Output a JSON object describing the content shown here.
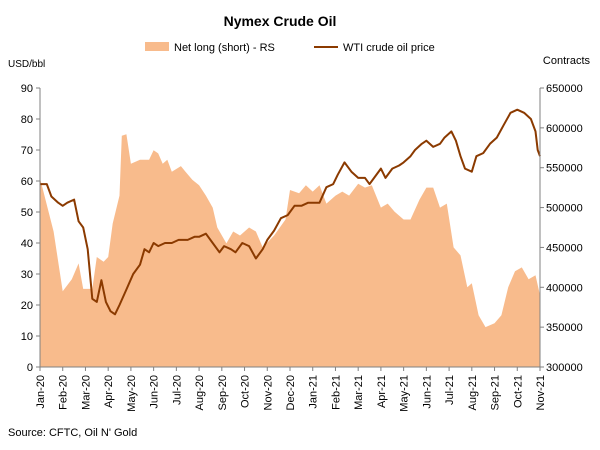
{
  "chart_data": {
    "type": "area+line",
    "title": "Nymex Crude Oil",
    "ylabel_left": "USD/bbl",
    "ylabel_right": "Contracts",
    "source": "Source: CFTC, Oil N' Gold",
    "y_left_range": [
      0,
      90
    ],
    "y_left_ticks": [
      "0",
      "10",
      "20",
      "30",
      "40",
      "50",
      "60",
      "70",
      "80",
      "90"
    ],
    "y_right_range": [
      300000,
      650000
    ],
    "y_right_ticks": [
      "300000",
      "350000",
      "400000",
      "450000",
      "500000",
      "550000",
      "600000",
      "650000"
    ],
    "x_range": [
      0,
      22
    ],
    "x_tick_labels": [
      "Jan-20",
      "Feb-20",
      "Mar-20",
      "Apr-20",
      "May-20",
      "Jun-20",
      "Jul-20",
      "Aug-20",
      "Sep-20",
      "Oct-20",
      "Nov-20",
      "Dec-20",
      "Jan-21",
      "Feb-21",
      "Mar-21",
      "Apr-21",
      "May-21",
      "Jun-21",
      "Jul-21",
      "Aug-21",
      "Sep-21",
      "Oct-21",
      "Nov-21"
    ],
    "grid": false,
    "legend_position": "top",
    "series": [
      {
        "name": "Net long (short) - RS",
        "axis": "right",
        "kind": "area",
        "color": "#f8bb8c",
        "points": [
          [
            0,
            537000
          ],
          [
            0.6,
            470000
          ],
          [
            1.0,
            395000
          ],
          [
            1.4,
            410000
          ],
          [
            1.7,
            430000
          ],
          [
            1.9,
            398000
          ],
          [
            2.3,
            398000
          ],
          [
            2.5,
            438000
          ],
          [
            2.8,
            432000
          ],
          [
            3.0,
            438000
          ],
          [
            3.2,
            480000
          ],
          [
            3.5,
            515000
          ],
          [
            3.6,
            590000
          ],
          [
            3.8,
            592000
          ],
          [
            4.0,
            555000
          ],
          [
            4.4,
            560000
          ],
          [
            4.8,
            560000
          ],
          [
            5.0,
            572000
          ],
          [
            5.2,
            568000
          ],
          [
            5.4,
            555000
          ],
          [
            5.6,
            560000
          ],
          [
            5.8,
            545000
          ],
          [
            6.2,
            552000
          ],
          [
            6.4,
            545000
          ],
          [
            6.7,
            535000
          ],
          [
            7.0,
            528000
          ],
          [
            7.3,
            515000
          ],
          [
            7.6,
            500000
          ],
          [
            7.8,
            475000
          ],
          [
            8.2,
            455000
          ],
          [
            8.5,
            470000
          ],
          [
            8.8,
            465000
          ],
          [
            9.2,
            475000
          ],
          [
            9.5,
            470000
          ],
          [
            9.8,
            450000
          ],
          [
            10.3,
            465000
          ],
          [
            10.8,
            485000
          ],
          [
            11.0,
            522000
          ],
          [
            11.4,
            518000
          ],
          [
            11.7,
            528000
          ],
          [
            12.0,
            520000
          ],
          [
            12.3,
            528000
          ],
          [
            12.6,
            505000
          ],
          [
            13.0,
            515000
          ],
          [
            13.3,
            520000
          ],
          [
            13.6,
            515000
          ],
          [
            14.0,
            530000
          ],
          [
            14.3,
            525000
          ],
          [
            14.6,
            528000
          ],
          [
            15.0,
            500000
          ],
          [
            15.3,
            505000
          ],
          [
            15.6,
            495000
          ],
          [
            16.0,
            485000
          ],
          [
            16.3,
            485000
          ],
          [
            16.7,
            510000
          ],
          [
            17.0,
            525000
          ],
          [
            17.3,
            525000
          ],
          [
            17.6,
            500000
          ],
          [
            17.9,
            505000
          ],
          [
            18.2,
            450000
          ],
          [
            18.5,
            440000
          ],
          [
            18.8,
            400000
          ],
          [
            19.0,
            405000
          ],
          [
            19.3,
            365000
          ],
          [
            19.6,
            350000
          ],
          [
            20.0,
            355000
          ],
          [
            20.3,
            365000
          ],
          [
            20.6,
            400000
          ],
          [
            20.9,
            420000
          ],
          [
            21.2,
            425000
          ],
          [
            21.5,
            410000
          ],
          [
            21.8,
            415000
          ],
          [
            22.0,
            390000
          ]
        ]
      },
      {
        "name": "WTI crude oil price",
        "axis": "left",
        "kind": "line",
        "color": "#8b3a00",
        "points": [
          [
            0,
            59
          ],
          [
            0.3,
            59
          ],
          [
            0.5,
            55
          ],
          [
            0.8,
            53
          ],
          [
            1.0,
            52
          ],
          [
            1.2,
            53
          ],
          [
            1.5,
            54
          ],
          [
            1.7,
            47
          ],
          [
            1.9,
            45
          ],
          [
            2.1,
            38
          ],
          [
            2.3,
            22
          ],
          [
            2.5,
            21
          ],
          [
            2.7,
            28
          ],
          [
            2.9,
            21
          ],
          [
            3.1,
            18
          ],
          [
            3.3,
            17
          ],
          [
            3.5,
            20
          ],
          [
            3.8,
            25
          ],
          [
            4.1,
            30
          ],
          [
            4.4,
            33
          ],
          [
            4.6,
            38
          ],
          [
            4.8,
            37
          ],
          [
            5.0,
            40
          ],
          [
            5.2,
            39
          ],
          [
            5.5,
            40
          ],
          [
            5.8,
            40
          ],
          [
            6.1,
            41
          ],
          [
            6.3,
            41
          ],
          [
            6.5,
            41
          ],
          [
            6.8,
            42
          ],
          [
            7.0,
            42
          ],
          [
            7.3,
            43
          ],
          [
            7.6,
            40
          ],
          [
            7.9,
            37
          ],
          [
            8.1,
            39
          ],
          [
            8.4,
            38
          ],
          [
            8.6,
            37
          ],
          [
            8.9,
            40
          ],
          [
            9.2,
            39
          ],
          [
            9.5,
            35
          ],
          [
            9.8,
            38
          ],
          [
            10.0,
            41
          ],
          [
            10.3,
            44
          ],
          [
            10.6,
            48
          ],
          [
            10.9,
            49
          ],
          [
            11.2,
            52
          ],
          [
            11.5,
            52
          ],
          [
            11.8,
            53
          ],
          [
            12.0,
            53
          ],
          [
            12.3,
            53
          ],
          [
            12.6,
            58
          ],
          [
            12.9,
            59
          ],
          [
            13.1,
            62
          ],
          [
            13.4,
            66
          ],
          [
            13.7,
            63
          ],
          [
            14.0,
            61
          ],
          [
            14.3,
            61
          ],
          [
            14.5,
            59
          ],
          [
            14.7,
            61
          ],
          [
            15.0,
            64
          ],
          [
            15.2,
            61
          ],
          [
            15.5,
            64
          ],
          [
            15.8,
            65
          ],
          [
            16.0,
            66
          ],
          [
            16.3,
            68
          ],
          [
            16.5,
            70
          ],
          [
            16.8,
            72
          ],
          [
            17.0,
            73
          ],
          [
            17.3,
            71
          ],
          [
            17.6,
            72
          ],
          [
            17.8,
            74
          ],
          [
            18.1,
            76
          ],
          [
            18.3,
            73
          ],
          [
            18.5,
            68
          ],
          [
            18.7,
            64
          ],
          [
            19.0,
            63
          ],
          [
            19.2,
            68
          ],
          [
            19.5,
            69
          ],
          [
            19.8,
            72
          ],
          [
            20.1,
            74
          ],
          [
            20.4,
            78
          ],
          [
            20.7,
            82
          ],
          [
            21.0,
            83
          ],
          [
            21.3,
            82
          ],
          [
            21.6,
            80
          ],
          [
            21.8,
            76
          ],
          [
            21.9,
            70
          ],
          [
            22.0,
            68
          ]
        ]
      }
    ]
  }
}
